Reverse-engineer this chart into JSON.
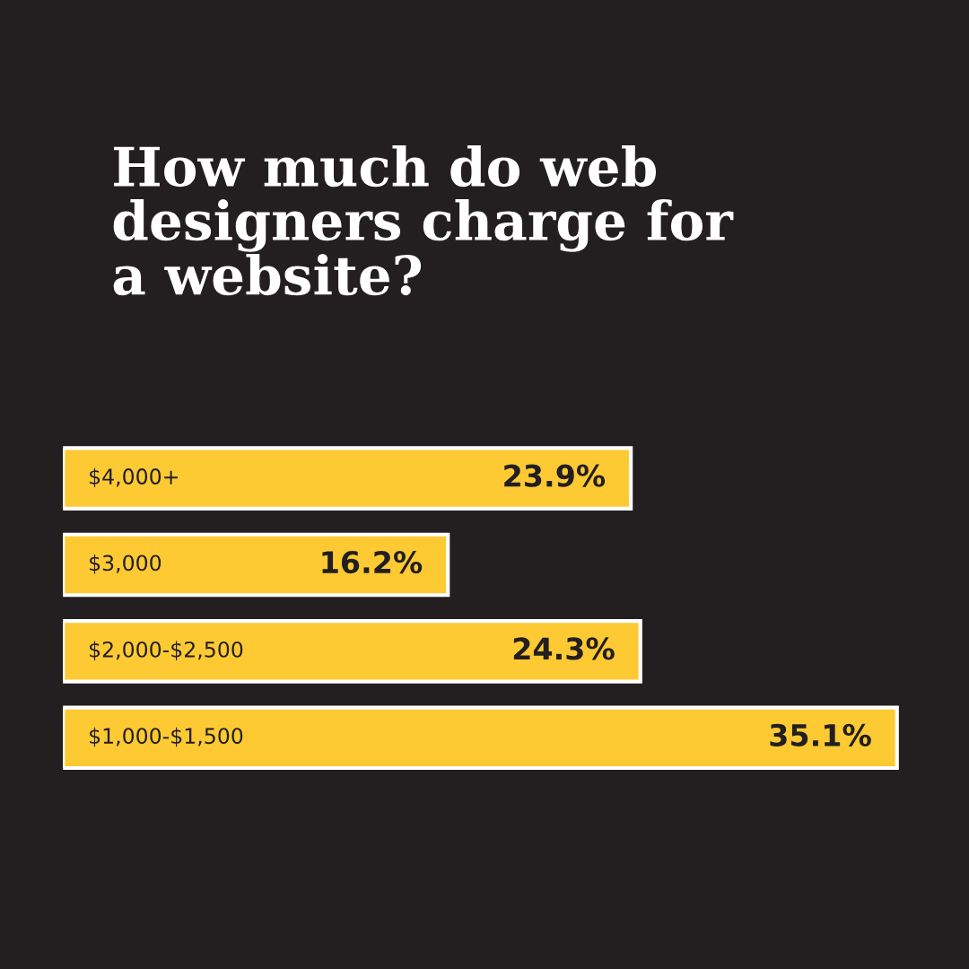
{
  "chart_data": {
    "type": "bar",
    "orientation": "horizontal",
    "title": "How much do web\ndesigners charge for\na website?",
    "categories": [
      "$4,000+",
      "$3,000",
      "$2,000-$2,500",
      "$1,000-$1,500"
    ],
    "values": [
      23.9,
      16.2,
      24.3,
      35.1
    ],
    "value_labels": [
      "23.9%",
      "16.2%",
      "24.3%",
      "35.1%"
    ],
    "color": "#fdca34"
  }
}
